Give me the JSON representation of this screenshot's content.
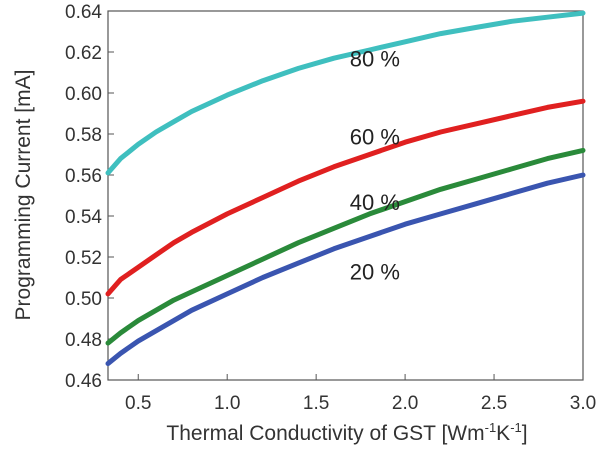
{
  "chart_data": {
    "type": "line",
    "title": "",
    "xlabel": "Thermal Conductivity of GST [Wm-1K-1]",
    "xlabel_parts": {
      "main": "Thermal Conductivity of GST [Wm",
      "sup1": "-1",
      "mid": "K",
      "sup2": "-1",
      "end": "]"
    },
    "ylabel": "Programming Current  [mA]",
    "xlim": [
      0.33,
      3.0
    ],
    "ylim": [
      0.46,
      0.64
    ],
    "xticks": [
      0.5,
      1.0,
      1.5,
      2.0,
      2.5,
      3.0
    ],
    "xtick_labels": [
      "0.5",
      "1.0",
      "1.5",
      "2.0",
      "2.5",
      "3.0"
    ],
    "yticks": [
      0.46,
      0.48,
      0.5,
      0.52,
      0.54,
      0.56,
      0.58,
      0.6,
      0.62,
      0.64
    ],
    "ytick_labels": [
      "0.46",
      "0.48",
      "0.50",
      "0.52",
      "0.54",
      "0.56",
      "0.58",
      "0.60",
      "0.62",
      "0.64"
    ],
    "grid": false,
    "legend": "none",
    "series": [
      {
        "name": "80 %",
        "color": "#3fbfbf",
        "x": [
          0.33,
          0.4,
          0.5,
          0.6,
          0.7,
          0.8,
          1.0,
          1.2,
          1.4,
          1.6,
          1.8,
          2.0,
          2.2,
          2.4,
          2.6,
          2.8,
          3.0
        ],
        "y": [
          0.561,
          0.568,
          0.575,
          0.581,
          0.586,
          0.591,
          0.599,
          0.606,
          0.612,
          0.617,
          0.621,
          0.625,
          0.629,
          0.632,
          0.635,
          0.637,
          0.639
        ]
      },
      {
        "name": "60 %",
        "color": "#e02020",
        "x": [
          0.33,
          0.4,
          0.5,
          0.6,
          0.7,
          0.8,
          1.0,
          1.2,
          1.4,
          1.6,
          1.8,
          2.0,
          2.2,
          2.4,
          2.6,
          2.8,
          3.0
        ],
        "y": [
          0.502,
          0.509,
          0.515,
          0.521,
          0.527,
          0.532,
          0.541,
          0.549,
          0.557,
          0.564,
          0.57,
          0.576,
          0.581,
          0.585,
          0.589,
          0.593,
          0.596
        ]
      },
      {
        "name": "40 %",
        "color": "#2a8a3a",
        "x": [
          0.33,
          0.4,
          0.5,
          0.6,
          0.7,
          0.8,
          1.0,
          1.2,
          1.4,
          1.6,
          1.8,
          2.0,
          2.2,
          2.4,
          2.6,
          2.8,
          3.0
        ],
        "y": [
          0.478,
          0.483,
          0.489,
          0.494,
          0.499,
          0.503,
          0.511,
          0.519,
          0.527,
          0.534,
          0.541,
          0.547,
          0.553,
          0.558,
          0.563,
          0.568,
          0.572
        ]
      },
      {
        "name": "20 %",
        "color": "#3a55b0",
        "x": [
          0.33,
          0.4,
          0.5,
          0.6,
          0.7,
          0.8,
          1.0,
          1.2,
          1.4,
          1.6,
          1.8,
          2.0,
          2.2,
          2.4,
          2.6,
          2.8,
          3.0
        ],
        "y": [
          0.468,
          0.473,
          0.479,
          0.484,
          0.489,
          0.494,
          0.502,
          0.51,
          0.517,
          0.524,
          0.53,
          0.536,
          0.541,
          0.546,
          0.551,
          0.556,
          0.56
        ]
      }
    ],
    "annotations": [
      {
        "text": "80 %",
        "series": "80 %",
        "x": 1.83,
        "y": 0.613
      },
      {
        "text": "60 %",
        "series": "60 %",
        "x": 1.83,
        "y": 0.575
      },
      {
        "text": "40 %",
        "series": "40 %",
        "x": 1.83,
        "y": 0.543
      },
      {
        "text": "20 %",
        "series": "20 %",
        "x": 1.83,
        "y": 0.509
      }
    ]
  }
}
